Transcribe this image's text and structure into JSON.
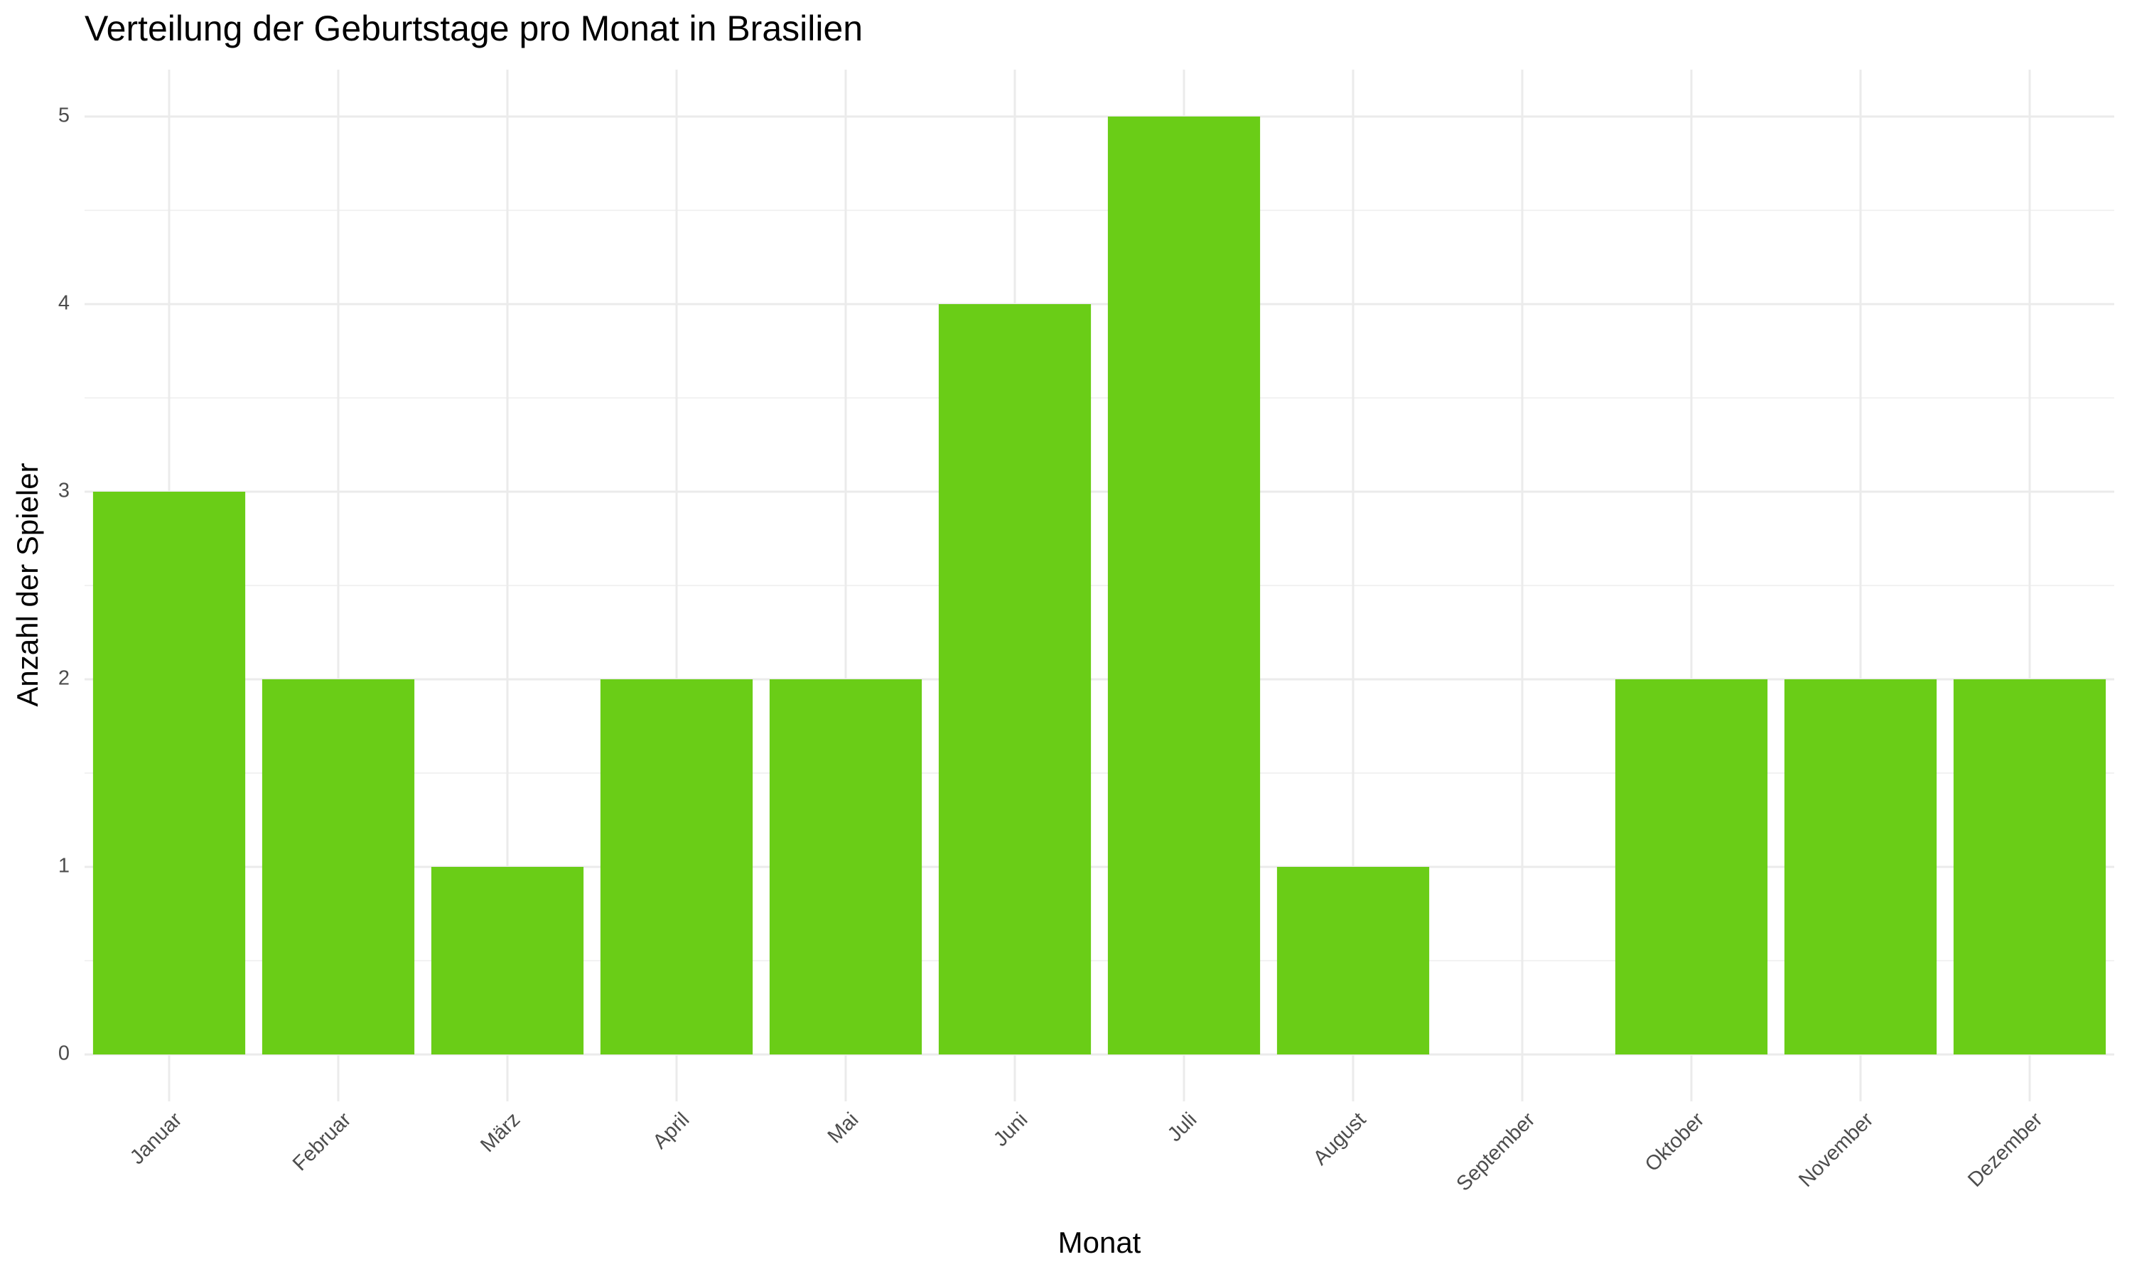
{
  "chart_data": {
    "type": "bar",
    "title": "Verteilung der Geburtstage pro Monat in Brasilien",
    "x_label": "Monat",
    "y_label": "Anzahl der Spieler",
    "categories": [
      "Januar",
      "Februar",
      "März",
      "April",
      "Mai",
      "Juni",
      "Juli",
      "August",
      "September",
      "Oktober",
      "November",
      "Dezember"
    ],
    "values": [
      3,
      2,
      1,
      2,
      2,
      4,
      5,
      1,
      0,
      2,
      2,
      2
    ],
    "color": "#6acd17",
    "ylim": [
      -0.25,
      5.25
    ],
    "yticks": [
      0,
      1,
      2,
      3,
      4,
      5
    ],
    "grid": true
  }
}
